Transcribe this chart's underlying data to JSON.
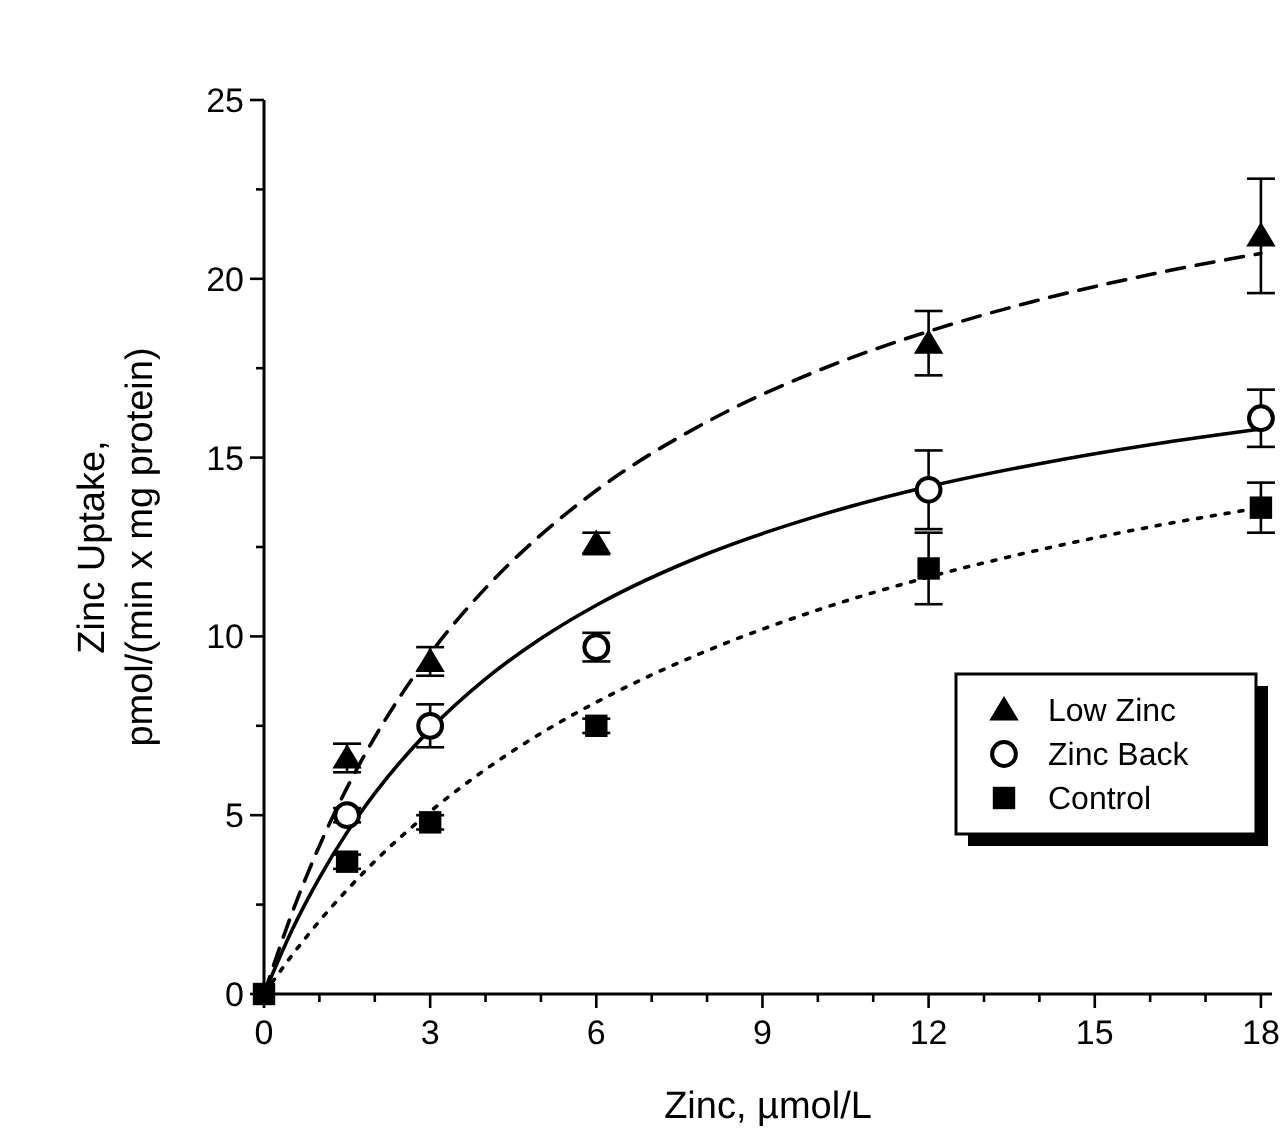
{
  "chart_data": {
    "type": "scatter",
    "xlabel": "Zinc, µmol/L",
    "ylabel": "Zinc Uptake,\npmol/(min x mg protein)",
    "xlim": [
      0,
      18.2
    ],
    "ylim": [
      0,
      25
    ],
    "xticks": [
      0,
      {
        "value": 1,
        "label": null
      },
      {
        "value": 2,
        "label": null
      },
      3,
      {
        "value": 4,
        "label": null
      },
      {
        "value": 5,
        "label": null
      },
      6,
      {
        "value": 7,
        "label": null
      },
      {
        "value": 8,
        "label": null
      },
      9,
      {
        "value": 10,
        "label": null
      },
      {
        "value": 11,
        "label": null
      },
      12,
      {
        "value": 13,
        "label": null
      },
      {
        "value": 14,
        "label": null
      },
      15,
      {
        "value": 16,
        "label": null
      },
      {
        "value": 17,
        "label": null
      },
      18
    ],
    "yticks": [
      0,
      {
        "value": 2.5,
        "label": null
      },
      5,
      {
        "value": 7.5,
        "label": null
      },
      10,
      {
        "value": 12.5,
        "label": null
      },
      15,
      {
        "value": 17.5,
        "label": null
      },
      20,
      {
        "value": 22.5,
        "label": null
      },
      25
    ],
    "grid": false,
    "legend": "bottom right",
    "series": [
      {
        "name": "Low Zinc",
        "marker": "triangle",
        "color": "#000000",
        "x": [
          1.5,
          3,
          6,
          12,
          18
        ],
        "values": [
          6.6,
          9.3,
          12.6,
          18.2,
          21.2
        ],
        "errors": [
          0.4,
          0.4,
          0.3,
          0.9,
          1.6
        ]
      },
      {
        "name": "Zinc Back",
        "marker": "circle",
        "color": "#000000",
        "x": [
          1.5,
          3,
          6,
          12,
          18
        ],
        "values": [
          5.0,
          7.5,
          9.7,
          14.1,
          16.1
        ],
        "errors": [
          0.2,
          0.6,
          0.4,
          1.1,
          0.8
        ]
      },
      {
        "name": "Control",
        "marker": "square",
        "color": "#000000",
        "x": [
          0,
          1.5,
          3,
          6,
          12,
          18
        ],
        "values": [
          0,
          3.7,
          4.8,
          7.5,
          11.9,
          13.6
        ],
        "errors": [
          null,
          0.2,
          0.2,
          0.2,
          1.0,
          0.7
        ]
      },
      {
        "type": "line",
        "line_style": "dashed",
        "marker": "none",
        "color": "#000000",
        "x": [
          0,
          0.5,
          1,
          1.5,
          2,
          3,
          4,
          5,
          6,
          8,
          10,
          12,
          14,
          16,
          18
        ],
        "values": [
          0,
          2.24,
          4.14,
          5.77,
          7.18,
          9.51,
          11.35,
          12.84,
          14.08,
          16.0,
          17.43,
          18.53,
          19.41,
          20.12,
          20.71
        ]
      },
      {
        "type": "line",
        "line_style": "solid",
        "marker": "none",
        "color": "#000000",
        "x": [
          0,
          0.5,
          1,
          1.5,
          2,
          3,
          4,
          5,
          6,
          8,
          10,
          12,
          14,
          16,
          18
        ],
        "values": [
          0,
          1.77,
          3.25,
          4.52,
          5.61,
          7.4,
          8.81,
          9.94,
          10.87,
          12.31,
          13.37,
          14.19,
          14.83,
          15.36,
          15.8
        ]
      },
      {
        "type": "line",
        "line_style": "dotted",
        "marker": "none",
        "color": "#000000",
        "x": [
          0,
          0.5,
          1,
          1.5,
          2,
          3,
          4,
          5,
          6,
          8,
          10,
          12,
          14,
          16,
          18
        ],
        "values": [
          0,
          1.07,
          2.04,
          2.91,
          3.71,
          5.1,
          6.28,
          7.29,
          8.16,
          9.6,
          10.74,
          11.66,
          12.42,
          13.06,
          13.6
        ]
      }
    ]
  }
}
